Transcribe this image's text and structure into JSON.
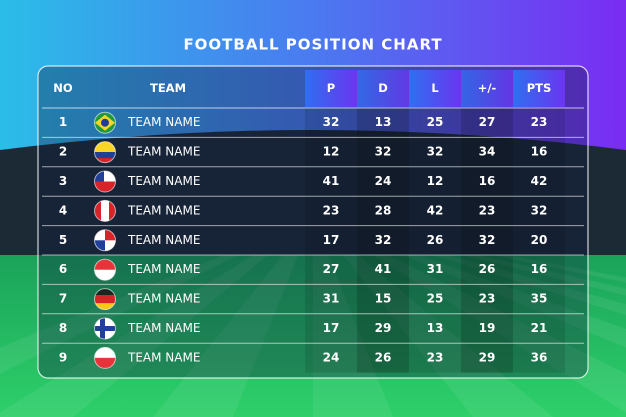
{
  "title": "FOOTBALL POSITION CHART",
  "table": {
    "headers": [
      "NO",
      "TEAM",
      "P",
      "D",
      "L",
      "+/-",
      "PTS"
    ],
    "rows": [
      [
        1,
        "TEAM NAME",
        32,
        13,
        25,
        27,
        23
      ],
      [
        2,
        "TEAM NAME",
        12,
        32,
        32,
        34,
        16
      ],
      [
        3,
        "TEAM NAME",
        41,
        24,
        12,
        16,
        42
      ],
      [
        4,
        "TEAM NAME",
        23,
        28,
        42,
        23,
        32
      ],
      [
        5,
        "TEAM NAME",
        17,
        32,
        26,
        32,
        20
      ],
      [
        6,
        "TEAM NAME",
        27,
        41,
        31,
        26,
        16
      ],
      [
        7,
        "TEAM NAME",
        31,
        15,
        25,
        23,
        35
      ],
      [
        8,
        "TEAM NAME",
        17,
        29,
        13,
        19,
        21
      ],
      [
        9,
        "TEAM NAME",
        24,
        26,
        23,
        29,
        36
      ]
    ]
  }
}
